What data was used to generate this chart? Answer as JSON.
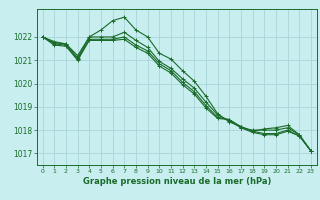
{
  "xlabel": "Graphe pression niveau de la mer (hPa)",
  "background_color": "#c8eef0",
  "grid_color": "#aad4d8",
  "line_color": "#1a6b2a",
  "ylim": [
    1016.5,
    1023.2
  ],
  "xlim": [
    -0.5,
    23.5
  ],
  "yticks": [
    1017,
    1018,
    1019,
    1020,
    1021,
    1022
  ],
  "xticks": [
    0,
    1,
    2,
    3,
    4,
    5,
    6,
    7,
    8,
    9,
    10,
    11,
    12,
    13,
    14,
    15,
    16,
    17,
    18,
    19,
    20,
    21,
    22,
    23
  ],
  "series": [
    [
      1022.0,
      1021.8,
      1021.7,
      1021.2,
      1022.0,
      1022.3,
      1022.7,
      1022.85,
      1022.3,
      1022.0,
      1021.3,
      1021.05,
      1020.55,
      1020.1,
      1019.45,
      1018.7,
      1018.35,
      1018.15,
      1017.95,
      1018.05,
      1018.1,
      1018.2,
      1017.8,
      1017.1
    ],
    [
      1022.0,
      1021.75,
      1021.7,
      1021.1,
      1022.0,
      1022.0,
      1022.0,
      1022.2,
      1021.85,
      1021.55,
      1020.95,
      1020.65,
      1020.2,
      1019.8,
      1019.2,
      1018.65,
      1018.4,
      1018.1,
      1018.0,
      1018.0,
      1018.0,
      1018.1,
      1017.8,
      1017.1
    ],
    [
      1022.0,
      1021.7,
      1021.65,
      1021.05,
      1021.9,
      1021.9,
      1021.9,
      1022.0,
      1021.65,
      1021.4,
      1020.85,
      1020.55,
      1020.05,
      1019.65,
      1019.05,
      1018.55,
      1018.45,
      1018.15,
      1017.95,
      1017.85,
      1017.85,
      1018.0,
      1017.75,
      1017.1
    ],
    [
      1022.0,
      1021.65,
      1021.6,
      1021.0,
      1021.85,
      1021.85,
      1021.85,
      1021.9,
      1021.55,
      1021.3,
      1020.75,
      1020.45,
      1019.95,
      1019.55,
      1018.95,
      1018.5,
      1018.45,
      1018.1,
      1017.9,
      1017.8,
      1017.8,
      1017.95,
      1017.75,
      1017.1
    ]
  ]
}
